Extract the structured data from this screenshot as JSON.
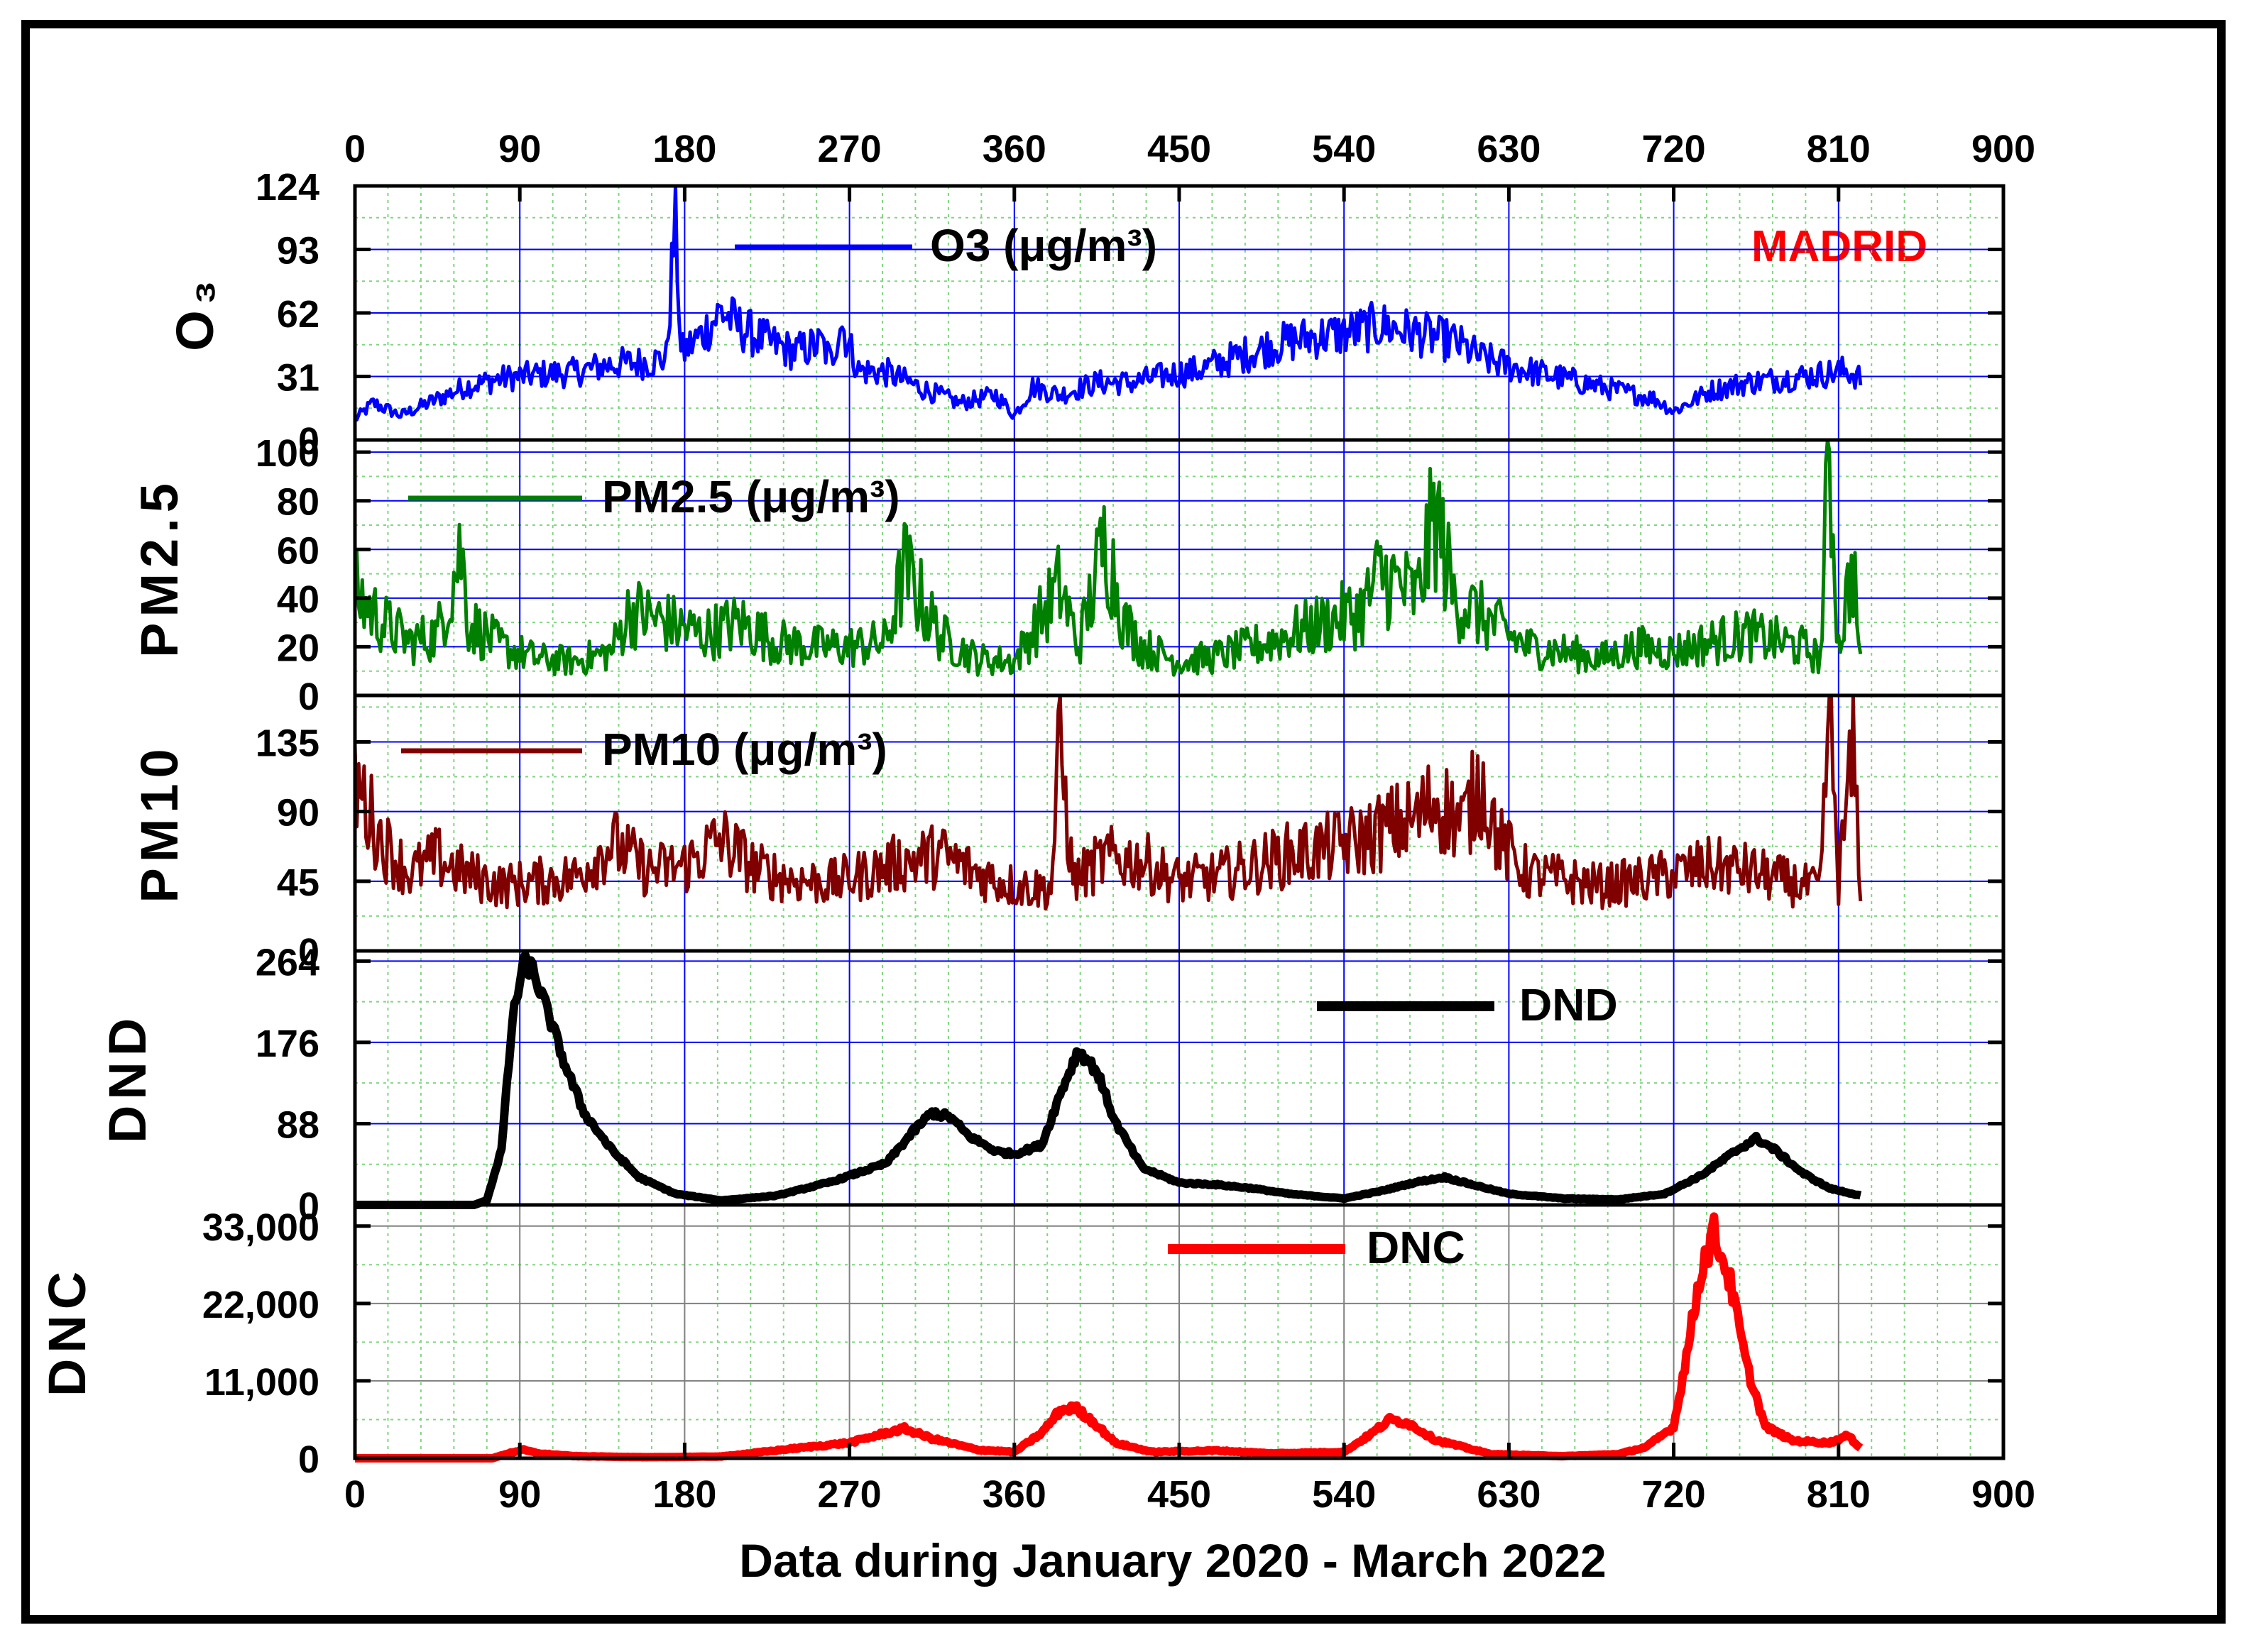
{
  "colors": {
    "o3": "#0000ff",
    "pm25": "#008000",
    "pm10": "#800000",
    "dnd": "#000000",
    "dnc": "#ff0000",
    "city": "#ff0000"
  },
  "chart": {
    "city_label": "MADRID",
    "xlabel": "Data during January 2020 - March 2022",
    "x_ticks": [
      "0",
      "90",
      "180",
      "270",
      "360",
      "450",
      "540",
      "630",
      "720",
      "810",
      "900"
    ]
  },
  "chart_data": [
    {
      "type": "line",
      "ylabel": "O₃",
      "series": [
        {
          "name": "O3 (μg/m³)",
          "color": "#0000ff",
          "points": [
            [
              0,
              10
            ],
            [
              10,
              18
            ],
            [
              25,
              12
            ],
            [
              45,
              20
            ],
            [
              60,
              26
            ],
            [
              80,
              30
            ],
            [
              100,
              32
            ],
            [
              120,
              33
            ],
            [
              140,
              37
            ],
            [
              160,
              38
            ],
            [
              170,
              40
            ],
            [
              175,
              110
            ],
            [
              178,
              42
            ],
            [
              190,
              52
            ],
            [
              200,
              63
            ],
            [
              210,
              55
            ],
            [
              225,
              48
            ],
            [
              240,
              43
            ],
            [
              255,
              47
            ],
            [
              260,
              38
            ],
            [
              265,
              58
            ],
            [
              275,
              34
            ],
            [
              290,
              33
            ],
            [
              310,
              25
            ],
            [
              330,
              18
            ],
            [
              350,
              22
            ],
            [
              360,
              12
            ],
            [
              370,
              26
            ],
            [
              385,
              22
            ],
            [
              405,
              28
            ],
            [
              425,
              28
            ],
            [
              445,
              32
            ],
            [
              460,
              34
            ],
            [
              480,
              40
            ],
            [
              500,
              46
            ],
            [
              520,
              50
            ],
            [
              540,
              52
            ],
            [
              560,
              56
            ],
            [
              580,
              52
            ],
            [
              600,
              48
            ],
            [
              615,
              40
            ],
            [
              630,
              36
            ],
            [
              650,
              32
            ],
            [
              670,
              28
            ],
            [
              690,
              24
            ],
            [
              710,
              20
            ],
            [
              720,
              14
            ],
            [
              740,
              24
            ],
            [
              760,
              28
            ],
            [
              780,
              30
            ],
            [
              800,
              32
            ],
            [
              815,
              34
            ],
            [
              822,
              30
            ]
          ]
        }
      ],
      "ylim": [
        0,
        124
      ],
      "y_ticks": [
        0,
        31,
        62,
        93,
        124
      ]
    },
    {
      "type": "line",
      "ylabel": "PM2.5",
      "series": [
        {
          "name": "PM2.5 (μg/m³)",
          "color": "#008000",
          "points": [
            [
              0,
              42
            ],
            [
              15,
              30
            ],
            [
              30,
              22
            ],
            [
              45,
              25
            ],
            [
              58,
              60
            ],
            [
              62,
              30
            ],
            [
              80,
              20
            ],
            [
              100,
              15
            ],
            [
              120,
              14
            ],
            [
              140,
              18
            ],
            [
              150,
              35
            ],
            [
              170,
              30
            ],
            [
              190,
              25
            ],
            [
              210,
              30
            ],
            [
              230,
              22
            ],
            [
              250,
              20
            ],
            [
              270,
              20
            ],
            [
              290,
              22
            ],
            [
              300,
              52
            ],
            [
              320,
              24
            ],
            [
              340,
              15
            ],
            [
              360,
              14
            ],
            [
              385,
              45
            ],
            [
              395,
              20
            ],
            [
              410,
              65
            ],
            [
              420,
              30
            ],
            [
              430,
              20
            ],
            [
              450,
              14
            ],
            [
              470,
              16
            ],
            [
              490,
              20
            ],
            [
              510,
              25
            ],
            [
              530,
              30
            ],
            [
              550,
              35
            ],
            [
              560,
              50
            ],
            [
              580,
              40
            ],
            [
              590,
              75
            ],
            [
              600,
              40
            ],
            [
              620,
              30
            ],
            [
              640,
              20
            ],
            [
              660,
              18
            ],
            [
              680,
              15
            ],
            [
              700,
              20
            ],
            [
              720,
              18
            ],
            [
              740,
              22
            ],
            [
              760,
              25
            ],
            [
              790,
              20
            ],
            [
              800,
              15
            ],
            [
              805,
              102
            ],
            [
              810,
              20
            ],
            [
              818,
              55
            ],
            [
              822,
              12
            ]
          ]
        }
      ],
      "ylim": [
        0,
        105
      ],
      "y_ticks": [
        0,
        20,
        40,
        60,
        80,
        100
      ]
    },
    {
      "type": "line",
      "ylabel": "PM10",
      "series": [
        {
          "name": "PM10 (μg/m³)",
          "color": "#800000",
          "points": [
            [
              0,
              110
            ],
            [
              15,
              70
            ],
            [
              30,
              50
            ],
            [
              45,
              60
            ],
            [
              60,
              50
            ],
            [
              80,
              42
            ],
            [
              100,
              45
            ],
            [
              120,
              48
            ],
            [
              140,
              70
            ],
            [
              160,
              52
            ],
            [
              180,
              55
            ],
            [
              200,
              72
            ],
            [
              220,
              52
            ],
            [
              240,
              46
            ],
            [
              260,
              44
            ],
            [
              280,
              50
            ],
            [
              300,
              58
            ],
            [
              320,
              62
            ],
            [
              340,
              50
            ],
            [
              360,
              42
            ],
            [
              380,
              40
            ],
            [
              385,
              135
            ],
            [
              392,
              45
            ],
            [
              410,
              60
            ],
            [
              430,
              58
            ],
            [
              450,
              45
            ],
            [
              470,
              48
            ],
            [
              490,
              55
            ],
            [
              510,
              62
            ],
            [
              530,
              66
            ],
            [
              550,
              72
            ],
            [
              565,
              80
            ],
            [
              580,
              85
            ],
            [
              590,
              98
            ],
            [
              605,
              82
            ],
            [
              615,
              110
            ],
            [
              625,
              70
            ],
            [
              640,
              50
            ],
            [
              660,
              46
            ],
            [
              680,
              42
            ],
            [
              700,
              45
            ],
            [
              720,
              50
            ],
            [
              740,
              55
            ],
            [
              760,
              52
            ],
            [
              790,
              42
            ],
            [
              800,
              40
            ],
            [
              805,
              165
            ],
            [
              810,
              45
            ],
            [
              818,
              130
            ],
            [
              822,
              45
            ]
          ]
        }
      ],
      "ylim": [
        0,
        165
      ],
      "y_ticks": [
        0,
        45,
        90,
        135
      ]
    },
    {
      "type": "line",
      "ylabel": "DND",
      "series": [
        {
          "name": "DND",
          "color": "#000000",
          "points": [
            [
              0,
              0
            ],
            [
              65,
              0
            ],
            [
              72,
              5
            ],
            [
              80,
              60
            ],
            [
              86,
              200
            ],
            [
              92,
              262
            ],
            [
              97,
              255
            ],
            [
              105,
              210
            ],
            [
              115,
              150
            ],
            [
              125,
              100
            ],
            [
              140,
              60
            ],
            [
              155,
              30
            ],
            [
              175,
              12
            ],
            [
              200,
              5
            ],
            [
              230,
              10
            ],
            [
              260,
              25
            ],
            [
              290,
              45
            ],
            [
              305,
              80
            ],
            [
              315,
              100
            ],
            [
              325,
              95
            ],
            [
              335,
              75
            ],
            [
              350,
              58
            ],
            [
              360,
              55
            ],
            [
              375,
              65
            ],
            [
              385,
              120
            ],
            [
              395,
              168
            ],
            [
              405,
              145
            ],
            [
              415,
              90
            ],
            [
              430,
              40
            ],
            [
              450,
              24
            ],
            [
              470,
              22
            ],
            [
              490,
              18
            ],
            [
              510,
              12
            ],
            [
              540,
              7
            ],
            [
              560,
              15
            ],
            [
              580,
              25
            ],
            [
              595,
              30
            ],
            [
              610,
              22
            ],
            [
              630,
              12
            ],
            [
              660,
              7
            ],
            [
              690,
              6
            ],
            [
              715,
              12
            ],
            [
              735,
              32
            ],
            [
              755,
              60
            ],
            [
              765,
              72
            ],
            [
              775,
              60
            ],
            [
              790,
              35
            ],
            [
              805,
              18
            ],
            [
              822,
              10
            ]
          ]
        }
      ],
      "ylim": [
        0,
        275
      ],
      "y_ticks": [
        0,
        88,
        176,
        264
      ]
    },
    {
      "type": "line",
      "ylabel": "DNC",
      "series": [
        {
          "name": "DNC",
          "color": "#ff0000",
          "points": [
            [
              0,
              0
            ],
            [
              75,
              0
            ],
            [
              85,
              800
            ],
            [
              92,
              1200
            ],
            [
              100,
              700
            ],
            [
              120,
              300
            ],
            [
              160,
              150
            ],
            [
              200,
              250
            ],
            [
              240,
              1400
            ],
            [
              270,
              2200
            ],
            [
              290,
              3600
            ],
            [
              300,
              4200
            ],
            [
              315,
              2800
            ],
            [
              340,
              1200
            ],
            [
              360,
              900
            ],
            [
              375,
              3600
            ],
            [
              385,
              6800
            ],
            [
              393,
              7200
            ],
            [
              403,
              5200
            ],
            [
              415,
              2200
            ],
            [
              435,
              900
            ],
            [
              470,
              1100
            ],
            [
              500,
              700
            ],
            [
              540,
              900
            ],
            [
              555,
              3500
            ],
            [
              565,
              5500
            ],
            [
              575,
              5000
            ],
            [
              590,
              2600
            ],
            [
              620,
              600
            ],
            [
              660,
              300
            ],
            [
              690,
              600
            ],
            [
              705,
              1600
            ],
            [
              720,
              4500
            ],
            [
              728,
              16000
            ],
            [
              735,
              27000
            ],
            [
              742,
              32000
            ],
            [
              750,
              26000
            ],
            [
              760,
              13000
            ],
            [
              770,
              4500
            ],
            [
              785,
              2500
            ],
            [
              805,
              2200
            ],
            [
              815,
              3200
            ],
            [
              822,
              1500
            ]
          ]
        }
      ],
      "ylim": [
        0,
        36000
      ],
      "y_ticks": [
        0,
        11000,
        22000,
        33000
      ],
      "y_tick_labels": [
        "0",
        "11,000",
        "22,000",
        "33,000"
      ]
    }
  ]
}
